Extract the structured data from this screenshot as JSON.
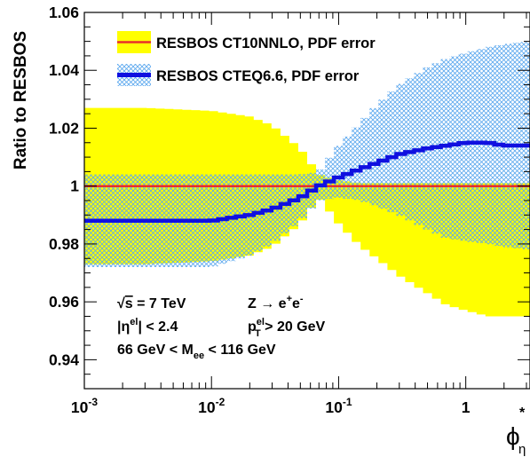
{
  "chart_data": {
    "type": "area",
    "x_scale": "log",
    "xlim": [
      0.001,
      3.2
    ],
    "ylim": [
      0.93,
      1.06
    ],
    "ylabel": "Ratio to RESBOS",
    "xlabel": {
      "base": "ϕ",
      "sub": "η",
      "sup": "*"
    },
    "x_tick_labels": [
      {
        "value": 0.001,
        "base": "10",
        "exp": "-3"
      },
      {
        "value": 0.01,
        "base": "10",
        "exp": "-2"
      },
      {
        "value": 0.1,
        "base": "10",
        "exp": "-1"
      },
      {
        "value": 1,
        "base": "1",
        "exp": ""
      }
    ],
    "y_ticks": [
      {
        "value": 0.94,
        "label": "0.94"
      },
      {
        "value": 0.96,
        "label": "0.96"
      },
      {
        "value": 0.98,
        "label": "0.98"
      },
      {
        "value": 1.0,
        "label": "1"
      },
      {
        "value": 1.02,
        "label": "1.02"
      },
      {
        "value": 1.04,
        "label": "1.04"
      },
      {
        "value": 1.06,
        "label": "1.06"
      }
    ],
    "legend": [
      {
        "label": "RESBOS CT10NNLO, PDF error",
        "fill": "#ffff00",
        "line": "#e8302a"
      },
      {
        "label": "RESBOS CTEQ6.6, PDF error",
        "fill": "hatch-blue",
        "line": "#1010e0"
      }
    ],
    "series": [
      {
        "name": "RESBOS CT10NNLO, PDF error",
        "style": "band",
        "color": "#ffff00",
        "line_color": "#e8302a",
        "x": [
          0.001,
          0.003,
          0.01,
          0.02,
          0.03,
          0.05,
          0.07,
          0.1,
          0.15,
          0.2,
          0.3,
          0.5,
          0.7,
          1.0,
          1.5,
          2.0,
          3.2
        ],
        "central": [
          1.0,
          1.0,
          1.0,
          1.0,
          1.0,
          1.0,
          1.0,
          1.0,
          1.0,
          1.0,
          1.0,
          1.0,
          1.0,
          1.0,
          1.0,
          1.0,
          1.0
        ],
        "upper": [
          1.027,
          1.027,
          1.026,
          1.024,
          1.021,
          1.013,
          1.004,
          1.002,
          1.001,
          1.001,
          1.001,
          1.001,
          1.001,
          1.001,
          1.001,
          1.001,
          1.001
        ],
        "lower": [
          0.973,
          0.973,
          0.974,
          0.976,
          0.979,
          0.987,
          0.996,
          0.987,
          0.979,
          0.975,
          0.969,
          0.963,
          0.959,
          0.957,
          0.955,
          0.955,
          0.955
        ]
      },
      {
        "name": "RESBOS CTEQ6.6, PDF error",
        "style": "hatched-band",
        "color": "#1010e0",
        "hatch_color": "#5aa7ee",
        "x": [
          0.001,
          0.003,
          0.01,
          0.02,
          0.03,
          0.05,
          0.07,
          0.1,
          0.15,
          0.2,
          0.3,
          0.5,
          0.7,
          1.0,
          1.5,
          2.0,
          3.2
        ],
        "central": [
          0.988,
          0.988,
          0.988,
          0.99,
          0.992,
          0.996,
          1.0,
          1.003,
          1.006,
          1.008,
          1.011,
          1.013,
          1.014,
          1.015,
          1.015,
          1.014,
          1.014
        ],
        "upper": [
          1.004,
          1.004,
          1.004,
          1.004,
          1.004,
          1.004,
          1.005,
          1.014,
          1.022,
          1.028,
          1.035,
          1.041,
          1.044,
          1.046,
          1.048,
          1.049,
          1.05
        ],
        "lower": [
          0.972,
          0.972,
          0.972,
          0.976,
          0.98,
          0.988,
          0.995,
          0.996,
          0.995,
          0.993,
          0.99,
          0.985,
          0.982,
          0.981,
          0.98,
          0.979,
          0.978
        ]
      }
    ],
    "annotations": [
      {
        "id": "sqrt-s",
        "pre": "√",
        "over": "s",
        "post": " = 7 TeV"
      },
      {
        "id": "eta-cut",
        "pre": "|η",
        "sup": "el",
        "post": "| < 2.4"
      },
      {
        "id": "mass-window",
        "pre": "66 GeV < M",
        "sub": "ee",
        "post": " < 116 GeV"
      },
      {
        "id": "process",
        "pre": "Z → e",
        "sup": "+",
        "mid": "e",
        "sup2": "-"
      },
      {
        "id": "pt-cut",
        "pre": "p",
        "sup": "el",
        "sub": "T",
        "post": " > 20 GeV"
      }
    ],
    "grid": false,
    "legend_position": "top-left"
  }
}
